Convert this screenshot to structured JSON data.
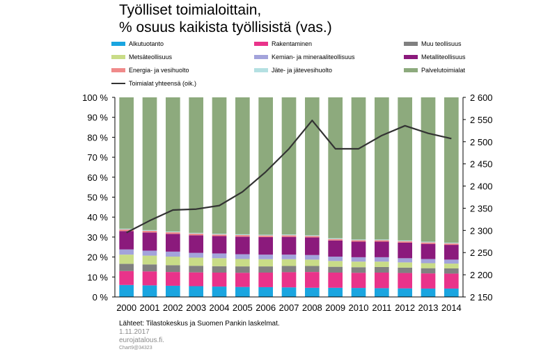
{
  "title_lines": [
    "Työlliset toimialoittain,",
    "% osuus kaikista työllisistä (vas.)"
  ],
  "source": "Lähteet: Tilastokeskus ja Suomen Pankin laskelmat.",
  "date": "1.11.2017",
  "site": "eurojatalous.fi.",
  "chart_code": "Chart9@34323",
  "chart_data": {
    "type": "bar",
    "stacked": true,
    "categories": [
      "2000",
      "2001",
      "2002",
      "2003",
      "2004",
      "2005",
      "2006",
      "2007",
      "2008",
      "2009",
      "2010",
      "2011",
      "2012",
      "2013",
      "2014"
    ],
    "series": [
      {
        "name": "Alkutuotanto",
        "color": "#1aa5e0",
        "values": [
          6.0,
          5.8,
          5.6,
          5.4,
          5.2,
          5.0,
          4.9,
          4.8,
          4.6,
          4.6,
          4.5,
          4.4,
          4.3,
          4.2,
          4.2
        ]
      },
      {
        "name": "Rakentaminen",
        "color": "#e9338a",
        "values": [
          7.0,
          7.0,
          6.9,
          6.9,
          7.0,
          7.1,
          7.3,
          7.6,
          7.9,
          7.6,
          7.6,
          7.8,
          7.7,
          7.6,
          7.5
        ]
      },
      {
        "name": "Muu teollisuus",
        "color": "#808080",
        "values": [
          3.6,
          3.5,
          3.4,
          3.3,
          3.2,
          3.2,
          3.1,
          3.1,
          3.0,
          2.9,
          2.8,
          2.8,
          2.7,
          2.6,
          2.6
        ]
      },
      {
        "name": "Metsäteollisuus",
        "color": "#c9dc87",
        "values": [
          4.6,
          4.4,
          4.3,
          4.1,
          4.0,
          3.7,
          3.6,
          3.4,
          3.2,
          2.9,
          2.8,
          2.7,
          2.6,
          2.5,
          2.4
        ]
      },
      {
        "name": "Kemian- ja mineraaliteollisuus",
        "color": "#a3a3db",
        "values": [
          2.6,
          2.5,
          2.5,
          2.4,
          2.4,
          2.4,
          2.3,
          2.3,
          2.3,
          2.2,
          2.2,
          2.2,
          2.1,
          2.1,
          2.0
        ]
      },
      {
        "name": "Metalliteollisuus",
        "color": "#8b1a7c",
        "values": [
          9.2,
          9.1,
          8.9,
          8.8,
          8.7,
          8.8,
          8.8,
          8.9,
          8.8,
          8.1,
          7.8,
          7.8,
          7.8,
          7.6,
          7.4
        ]
      },
      {
        "name": "Energia- ja vesihuolto",
        "color": "#f08a8a",
        "values": [
          0.8,
          0.8,
          0.8,
          0.8,
          0.8,
          0.8,
          0.8,
          0.8,
          0.7,
          0.7,
          0.7,
          0.7,
          0.7,
          0.7,
          0.7
        ]
      },
      {
        "name": "Jäte- ja jätevesihuolto",
        "color": "#b4e0e2",
        "values": [
          0.4,
          0.4,
          0.4,
          0.4,
          0.4,
          0.4,
          0.4,
          0.4,
          0.4,
          0.4,
          0.4,
          0.4,
          0.4,
          0.4,
          0.4
        ]
      },
      {
        "name": "Palvelutoimialat",
        "color": "#8daa7d",
        "values": [
          65.8,
          66.5,
          67.2,
          67.9,
          68.3,
          68.6,
          68.8,
          68.7,
          69.1,
          70.6,
          71.2,
          71.2,
          71.7,
          72.3,
          72.8
        ]
      }
    ],
    "line_series": {
      "name": "Toimialat yhteensä (oik.)",
      "color": "#333333",
      "values": [
        2295,
        2322,
        2346,
        2348,
        2356,
        2387,
        2432,
        2484,
        2548,
        2484,
        2484,
        2514,
        2536,
        2519,
        2507
      ]
    },
    "y_left": {
      "min": 0,
      "max": 100,
      "step": 10,
      "tick_labels": [
        "0 %",
        "10 %",
        "20 %",
        "30 %",
        "40 %",
        "50 %",
        "60 %",
        "70 %",
        "80 %",
        "90 %",
        "100 %"
      ]
    },
    "y_right": {
      "min": 2150,
      "max": 2600,
      "step": 50,
      "tick_labels": [
        "2 150",
        "2 200",
        "2 250",
        "2 300",
        "2 350",
        "2 400",
        "2 450",
        "2 500",
        "2 550",
        "2 600"
      ]
    },
    "legend_position": "top"
  }
}
